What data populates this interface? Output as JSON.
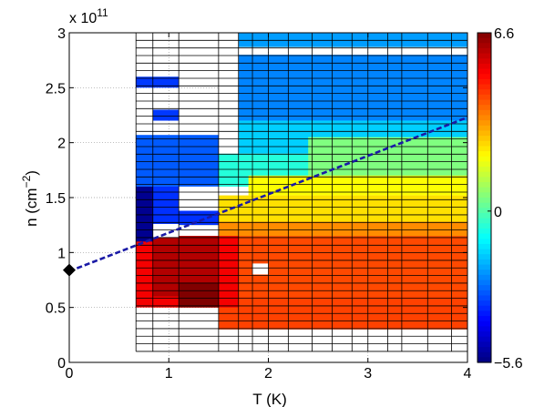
{
  "chart_data": {
    "type": "heatmap",
    "title": "",
    "xlabel": "T (K)",
    "ylabel_base": "n (cm",
    "ylabel_exp": "−2",
    "ylabel_close": ")",
    "y_multiplier_base": "x 10",
    "y_multiplier_exp": "11",
    "xlim": [
      0,
      4
    ],
    "ylim": [
      0,
      3
    ],
    "x_ticks": [
      0,
      1,
      2,
      3,
      4
    ],
    "x_tick_labels": [
      "0",
      "1",
      "2",
      "3",
      "4"
    ],
    "y_ticks": [
      0,
      0.5,
      1,
      1.5,
      2,
      2.5,
      3
    ],
    "y_tick_labels": [
      "0",
      "0.5",
      "1",
      "1.5",
      "2",
      "2.5",
      "3"
    ],
    "colorbar": {
      "min": -5.6,
      "max": 6.6,
      "ticks": [
        6.6,
        0,
        -5.6
      ],
      "tick_labels": [
        "6.6",
        "0",
        "−5.6"
      ],
      "colormap": "jet"
    },
    "grid_x_edges": [
      0.67,
      0.84,
      1.1,
      1.5,
      1.7,
      1.84,
      2.0,
      2.2,
      2.44,
      2.64,
      2.84,
      3.0,
      3.2,
      3.34,
      3.6,
      3.84,
      4.0
    ],
    "n_range": [
      0.1,
      3.0
    ],
    "n_rows": 42,
    "grid_color": "#000000",
    "dashed_line": {
      "x": [
        0,
        4
      ],
      "y": [
        0.83,
        2.23
      ],
      "color": "#1a1aa6",
      "style": "dashed"
    },
    "marker": {
      "x": 0,
      "y": 0.84,
      "shape": "diamond",
      "color": "#000000"
    },
    "filled_regions": [
      {
        "x0": 1.7,
        "x1": 4.0,
        "y0": 2.87,
        "y1": 3.0,
        "value": -2.2
      },
      {
        "x0": 1.5,
        "x1": 4.0,
        "y0": 2.2,
        "y1": 2.8,
        "value": -2.5
      },
      {
        "x0": 1.5,
        "x1": 4.0,
        "y0": 1.9,
        "y1": 2.2,
        "value": -1.6
      },
      {
        "x0": 1.5,
        "x1": 4.0,
        "y0": 1.6,
        "y1": 1.9,
        "value": -0.6
      },
      {
        "x0": 2.4,
        "x1": 4.0,
        "y0": 1.6,
        "y1": 2.05,
        "value": 0.5
      },
      {
        "x0": 1.8,
        "x1": 4.0,
        "y0": 1.52,
        "y1": 1.7,
        "value": 2.0
      },
      {
        "x0": 1.1,
        "x1": 4.0,
        "y0": 1.25,
        "y1": 1.52,
        "value": 2.4
      },
      {
        "x0": 1.5,
        "x1": 4.0,
        "y0": 1.1,
        "y1": 1.28,
        "value": 3.4
      },
      {
        "x0": 0.84,
        "x1": 4.0,
        "y0": 0.5,
        "y1": 1.15,
        "value": 4.2
      },
      {
        "x0": 1.5,
        "x1": 4.0,
        "y0": 0.3,
        "y1": 0.6,
        "value": 4.3
      },
      {
        "x0": 0.67,
        "x1": 1.7,
        "y0": 0.5,
        "y1": 1.15,
        "value": 5.2
      },
      {
        "x0": 0.84,
        "x1": 1.5,
        "y0": 0.6,
        "y1": 1.15,
        "value": 6.0
      },
      {
        "x0": 1.1,
        "x1": 1.5,
        "y0": 0.5,
        "y1": 0.72,
        "value": 6.6
      },
      {
        "x0": 0.67,
        "x1": 1.5,
        "y0": 1.25,
        "y1": 1.6,
        "value": -3.5
      },
      {
        "x0": 0.67,
        "x1": 0.84,
        "y0": 1.1,
        "y1": 1.6,
        "value": -5.4
      },
      {
        "x0": 0.67,
        "x1": 1.5,
        "y0": 1.6,
        "y1": 2.07,
        "value": -3.0
      },
      {
        "x0": 0.67,
        "x1": 1.1,
        "y0": 2.5,
        "y1": 2.6,
        "value": -3.4
      },
      {
        "x0": 0.84,
        "x1": 1.1,
        "y0": 2.2,
        "y1": 2.3,
        "value": -3.4
      }
    ],
    "white_cells": [
      {
        "x0": 1.1,
        "x1": 1.5,
        "y0": 1.38,
        "y1": 1.6
      },
      {
        "x0": 0.84,
        "x1": 1.1,
        "y0": 1.14,
        "y1": 1.26
      },
      {
        "x0": 1.5,
        "x1": 1.7,
        "y0": 1.9,
        "y1": 3.0
      },
      {
        "x0": 1.84,
        "x1": 2.0,
        "y0": 0.8,
        "y1": 0.9
      }
    ]
  }
}
